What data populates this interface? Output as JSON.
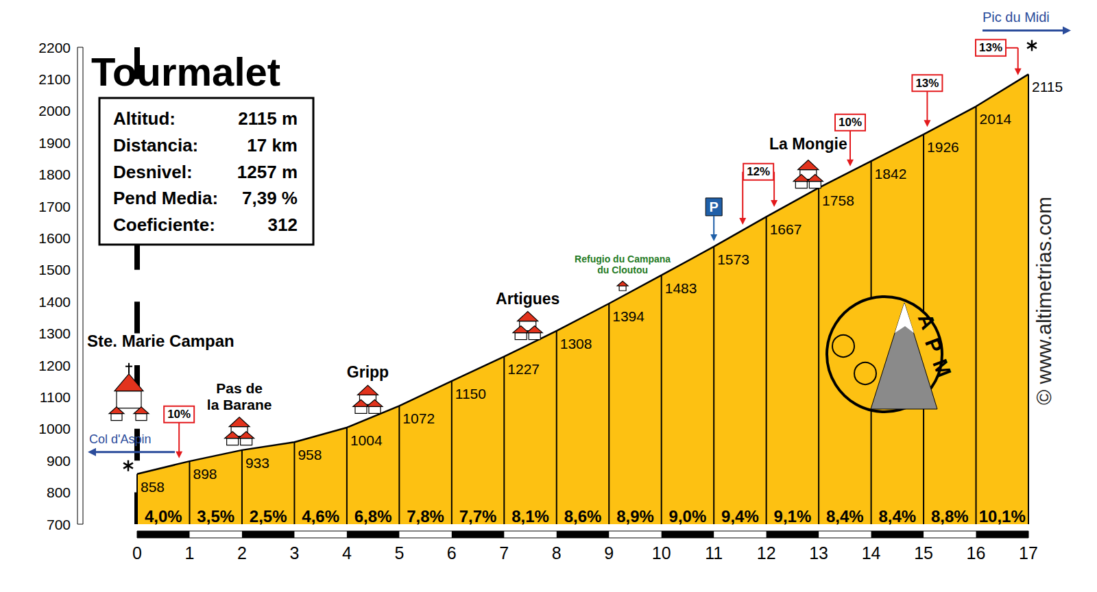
{
  "chart_data": {
    "type": "area",
    "title": "Tourmalet",
    "info": [
      [
        "Altitud:",
        "2115 m"
      ],
      [
        "Distancia:",
        "17 km"
      ],
      [
        "Desnivel:",
        "1257 m"
      ],
      [
        "Pend Media:",
        "7,39 %"
      ],
      [
        "Coeficiente:",
        "312"
      ]
    ],
    "x": [
      0,
      1,
      2,
      3,
      4,
      5,
      6,
      7,
      8,
      9,
      10,
      11,
      12,
      13,
      14,
      15,
      16,
      17
    ],
    "values": [
      858,
      898,
      933,
      958,
      1004,
      1072,
      1150,
      1227,
      1308,
      1394,
      1483,
      1573,
      1667,
      1758,
      1842,
      1926,
      2014,
      2115
    ],
    "color": "#fdc112",
    "data_labels": true,
    "gradients": {
      "values": [
        4.0,
        3.5,
        2.5,
        4.6,
        6.8,
        7.8,
        7.7,
        8.1,
        8.6,
        8.9,
        9.0,
        9.4,
        9.1,
        8.4,
        8.4,
        8.8,
        10.1
      ],
      "value_labels": [
        "4,0%",
        "3,5%",
        "2,5%",
        "4,6%",
        "6,8%",
        "7,8%",
        "7,7%",
        "8,1%",
        "8,6%",
        "8,9%",
        "9,0%",
        "9,4%",
        "9,1%",
        "8,4%",
        "8,4%",
        "8,8%",
        "10,1%"
      ]
    },
    "xlim": [
      0,
      17
    ],
    "xticks": [
      0,
      1,
      2,
      3,
      4,
      5,
      6,
      7,
      8,
      9,
      10,
      11,
      12,
      13,
      14,
      15,
      16,
      17
    ],
    "ylim": [
      700,
      2200
    ],
    "yticks": [
      700,
      800,
      900,
      1000,
      1100,
      1200,
      1300,
      1400,
      1500,
      1600,
      1700,
      1800,
      1900,
      2000,
      2100,
      2200
    ],
    "grid": false,
    "places": [
      {
        "text": "Ste. Marie Campan",
        "km": 0
      },
      {
        "text": "Pas de\nla Barane",
        "km": 1.95
      },
      {
        "text": "Gripp",
        "km": 4.4
      },
      {
        "text": "Artigues",
        "km": 7.45
      },
      {
        "text": "Refugio du Campana\ndu Cloutou",
        "km": 9.26
      },
      {
        "text": "La Mongie",
        "km": 12.8
      }
    ],
    "steep": [
      {
        "text": "10%",
        "km": [
          0.8
        ]
      },
      {
        "text": "12%",
        "km": [
          11.55,
          12.15
        ]
      },
      {
        "text": "10%",
        "km": [
          13.6
        ]
      },
      {
        "text": "13%",
        "km": [
          15.07
        ]
      },
      {
        "text": "13%",
        "km": [
          16.8
        ]
      }
    ],
    "parking": {
      "text": "P",
      "km": 11
    },
    "links": [
      {
        "text": "Col d'Aspin",
        "km": 0
      },
      {
        "text": "Pic du Midi",
        "km": 17
      }
    ],
    "logo": "APM",
    "source": "© www.altimetrias.com"
  }
}
